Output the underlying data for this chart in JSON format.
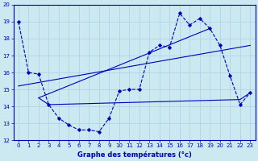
{
  "xlabel": "Graphe des températures (°c)",
  "xlim": [
    -0.5,
    23.5
  ],
  "ylim": [
    12,
    20
  ],
  "yticks": [
    12,
    13,
    14,
    15,
    16,
    17,
    18,
    19,
    20
  ],
  "xticks": [
    0,
    1,
    2,
    3,
    4,
    5,
    6,
    7,
    8,
    9,
    10,
    11,
    12,
    13,
    14,
    15,
    16,
    17,
    18,
    19,
    20,
    21,
    22,
    23
  ],
  "bg_color": "#cce8f0",
  "line_color": "#0000bb",
  "grid_color": "#b0d8e8",
  "main_line": {
    "x": [
      0,
      1,
      2,
      3,
      4,
      5,
      6,
      7,
      8,
      9,
      10,
      11,
      12,
      13,
      14,
      15,
      16,
      17,
      18,
      19,
      20,
      21,
      22,
      23
    ],
    "y": [
      19.0,
      16.0,
      15.9,
      14.1,
      13.3,
      12.9,
      12.6,
      12.6,
      12.5,
      13.3,
      14.9,
      15.0,
      15.0,
      17.2,
      17.6,
      17.5,
      19.5,
      18.8,
      19.2,
      18.6,
      17.6,
      15.8,
      14.1,
      14.8
    ]
  },
  "flat_line": {
    "x": [
      2,
      3,
      22,
      23
    ],
    "y": [
      14.5,
      14.1,
      14.4,
      14.8
    ]
  },
  "rising_line1": {
    "x": [
      0,
      23
    ],
    "y": [
      15.2,
      17.6
    ]
  },
  "rising_line2": {
    "x": [
      2,
      19
    ],
    "y": [
      14.5,
      18.6
    ]
  }
}
